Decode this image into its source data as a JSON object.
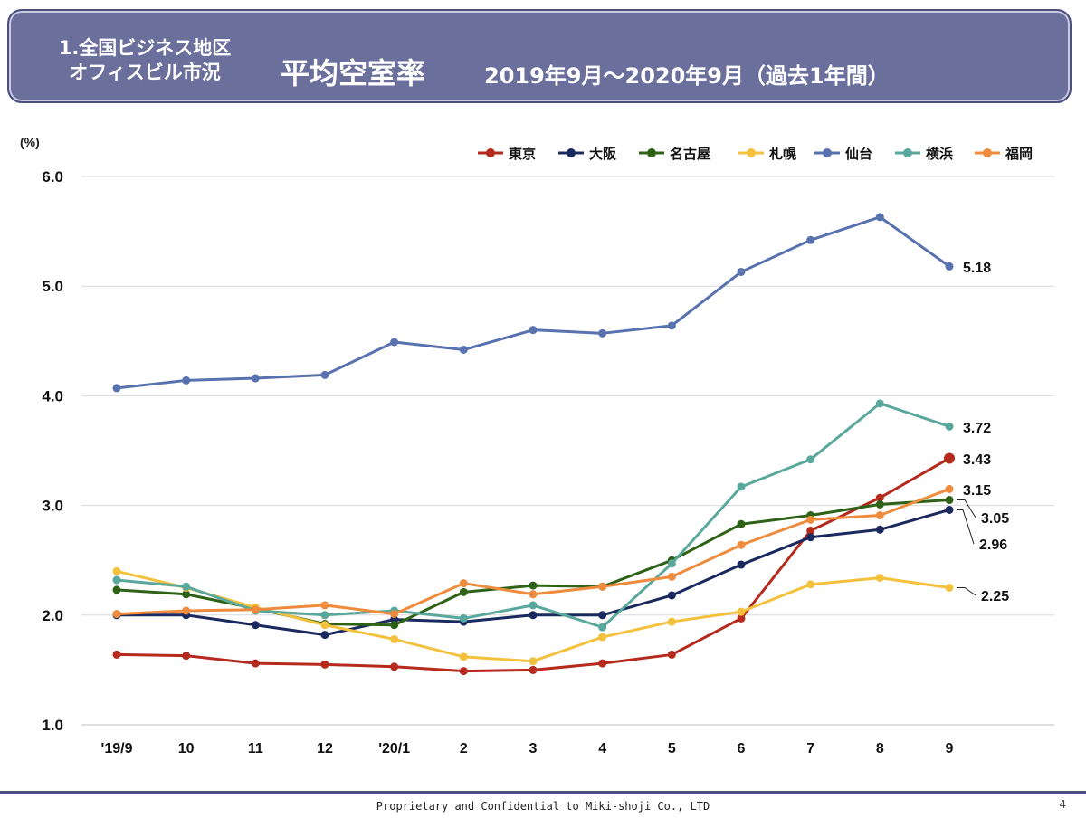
{
  "header": {
    "section_line1": "1.全国ビジネス地区",
    "section_line2": "オフィスビル市況",
    "main_title": "平均空室率",
    "period": "2019年9月～2020年9月（過去1年間）"
  },
  "chart_data": {
    "type": "line",
    "unit_label": "(%)",
    "ylim": [
      1.0,
      6.0
    ],
    "yticks": [
      "1.0",
      "2.0",
      "3.0",
      "4.0",
      "5.0",
      "6.0"
    ],
    "categories": [
      "'19/9",
      "10",
      "11",
      "12",
      "'20/1",
      "2",
      "3",
      "4",
      "5",
      "6",
      "7",
      "8",
      "9"
    ],
    "legend_position": "top-right",
    "grid": true,
    "series": [
      {
        "name": "東京",
        "color": "#b52a1d",
        "values": [
          1.64,
          1.63,
          1.56,
          1.55,
          1.53,
          1.49,
          1.5,
          1.56,
          1.64,
          1.97,
          2.77,
          3.07,
          3.43
        ],
        "end_label": "3.43"
      },
      {
        "name": "大阪",
        "color": "#1a2a5e",
        "values": [
          2.0,
          2.0,
          1.91,
          1.82,
          1.96,
          1.94,
          2.0,
          2.0,
          2.18,
          2.46,
          2.71,
          2.78,
          2.96
        ],
        "end_label": "2.96"
      },
      {
        "name": "名古屋",
        "color": "#2e6317",
        "values": [
          2.23,
          2.19,
          2.06,
          1.92,
          1.91,
          2.21,
          2.27,
          2.26,
          2.5,
          2.83,
          2.91,
          3.01,
          3.05
        ],
        "end_label": "3.05"
      },
      {
        "name": "札幌",
        "color": "#f4c13d",
        "values": [
          2.4,
          2.25,
          2.07,
          1.91,
          1.78,
          1.62,
          1.58,
          1.8,
          1.94,
          2.03,
          2.28,
          2.34,
          2.25
        ],
        "end_label": "2.25"
      },
      {
        "name": "仙台",
        "color": "#5872b0",
        "values": [
          4.07,
          4.14,
          4.16,
          4.19,
          4.49,
          4.42,
          4.6,
          4.57,
          4.64,
          5.13,
          5.42,
          5.63,
          5.18
        ],
        "end_label": "5.18"
      },
      {
        "name": "横浜",
        "color": "#5aa89c",
        "values": [
          2.32,
          2.26,
          2.04,
          2.0,
          2.04,
          1.97,
          2.09,
          1.89,
          2.47,
          3.17,
          3.42,
          3.93,
          3.72
        ],
        "end_label": "3.72"
      },
      {
        "name": "福岡",
        "color": "#ef8b3c",
        "values": [
          2.01,
          2.04,
          2.05,
          2.09,
          2.01,
          2.29,
          2.19,
          2.26,
          2.35,
          2.64,
          2.87,
          2.91,
          3.15
        ],
        "end_label": "3.15"
      }
    ]
  },
  "footer": {
    "confidential": "Proprietary and Confidential to Miki-shoji Co., LTD",
    "page_number": "4"
  }
}
